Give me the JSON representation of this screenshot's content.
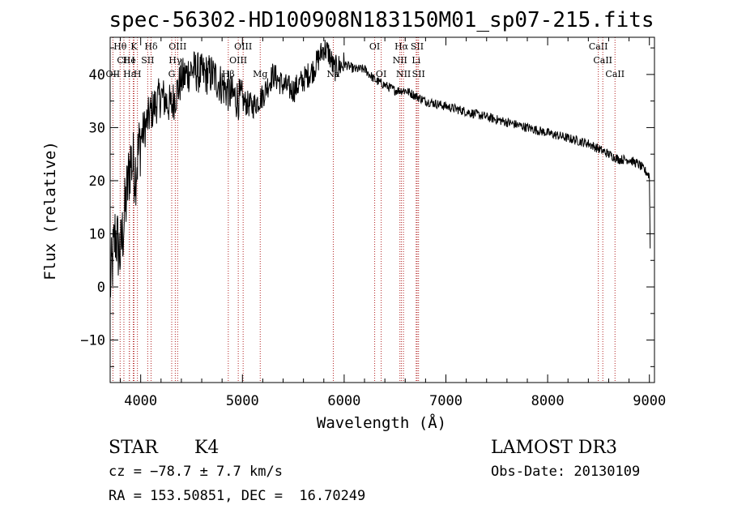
{
  "chart_data": {
    "type": "line",
    "title": "spec-56302-HD100908N183150M01_sp07-215.fits",
    "xlabel": "Wavelength (Å)",
    "ylabel": "Flux (relative)",
    "xlim": [
      3700,
      9050
    ],
    "ylim": [
      -18,
      47
    ],
    "x_ticks": [
      4000,
      5000,
      6000,
      7000,
      8000,
      9000
    ],
    "y_ticks": [
      -10,
      0,
      10,
      20,
      30,
      40
    ],
    "x_tick_labels": [
      "4000",
      "5000",
      "6000",
      "7000",
      "8000",
      "9000"
    ],
    "y_tick_labels": [
      "−10",
      "0",
      "10",
      "20",
      "30",
      "40"
    ],
    "grid": false,
    "line_color": "#000000",
    "marker_color": "#b22222",
    "series": [
      {
        "name": "spectrum",
        "x": [
          3700,
          3750,
          3800,
          3850,
          3900,
          3950,
          4000,
          4100,
          4200,
          4300,
          4400,
          4500,
          4600,
          4700,
          4800,
          4900,
          5000,
          5100,
          5200,
          5300,
          5400,
          5500,
          5600,
          5700,
          5800,
          5850,
          5900,
          6000,
          6100,
          6200,
          6300,
          6400,
          6500,
          6600,
          6700,
          6800,
          7000,
          7200,
          7400,
          7600,
          7800,
          8000,
          8200,
          8400,
          8500,
          8600,
          8700,
          8800,
          8900,
          9000,
          9010
        ],
        "y": [
          0,
          10,
          6,
          15,
          24,
          22,
          28,
          33,
          36,
          34,
          39,
          41,
          40,
          40,
          38,
          36,
          35,
          34,
          36,
          40,
          38,
          37,
          39,
          41,
          45,
          44,
          41,
          42,
          41,
          41,
          39,
          38,
          37,
          37,
          36,
          35,
          34,
          33,
          32,
          31,
          30,
          29,
          28,
          27,
          26,
          25,
          24,
          24,
          23,
          21,
          4
        ]
      }
    ],
    "line_markers": [
      {
        "label": "Hθ",
        "x": 3798,
        "row": 1
      },
      {
        "label": "K",
        "x": 3934,
        "row": 1
      },
      {
        "label": "Hδ",
        "x": 4102,
        "row": 1
      },
      {
        "label": "OIII",
        "x": 4363,
        "row": 1
      },
      {
        "label": "OIII",
        "x": 5007,
        "row": 1
      },
      {
        "label": "OI",
        "x": 6300,
        "row": 1
      },
      {
        "label": "Hα",
        "x": 6563,
        "row": 1
      },
      {
        "label": "SII",
        "x": 6717,
        "row": 1
      },
      {
        "label": "CaII",
        "x": 8498,
        "row": 1
      },
      {
        "label": "CII",
        "x": 3835,
        "row": 2
      },
      {
        "label": "He",
        "x": 3889,
        "row": 2
      },
      {
        "label": "I",
        "x": 3927,
        "row": 2
      },
      {
        "label": "SII",
        "x": 4069,
        "row": 2
      },
      {
        "label": "Hγ",
        "x": 4340,
        "row": 2
      },
      {
        "label": "OIII",
        "x": 4959,
        "row": 2
      },
      {
        "label": "NII",
        "x": 6548,
        "row": 2
      },
      {
        "label": "Li",
        "x": 6708,
        "row": 2
      },
      {
        "label": "CaII",
        "x": 8542,
        "row": 2
      },
      {
        "label": "OII",
        "x": 3727,
        "row": 3
      },
      {
        "label": "Hε",
        "x": 3889,
        "row": 3
      },
      {
        "label": "H",
        "x": 3968,
        "row": 3
      },
      {
        "label": "G",
        "x": 4305,
        "row": 3
      },
      {
        "label": "Hβ",
        "x": 4861,
        "row": 3
      },
      {
        "label": "Mg",
        "x": 5175,
        "row": 3
      },
      {
        "label": "Na",
        "x": 5893,
        "row": 3
      },
      {
        "label": "OI",
        "x": 6364,
        "row": 3
      },
      {
        "label": "NII",
        "x": 6583,
        "row": 3
      },
      {
        "label": "SII",
        "x": 6731,
        "row": 3
      },
      {
        "label": "CaII",
        "x": 8662,
        "row": 3
      }
    ]
  },
  "info": {
    "object_class": "STAR",
    "subclass": "K4",
    "survey": "LAMOST DR3",
    "cz": "cz = −78.7 ± 7.7 km/s",
    "obs_date": "Obs-Date: 20130109",
    "coords": "RA = 153.50851, DEC =  16.70249"
  }
}
